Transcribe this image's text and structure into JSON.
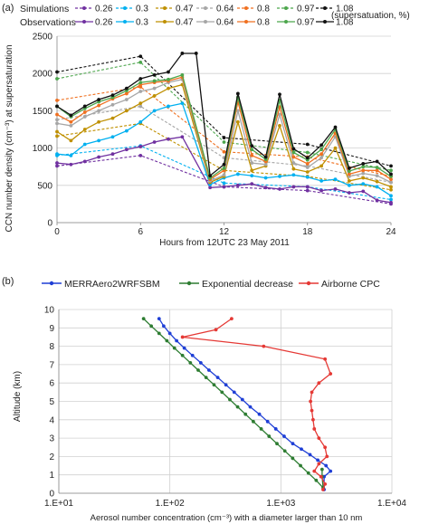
{
  "panel_a": {
    "panel_label": "(a)",
    "legend": {
      "simulations_label": "Simulations",
      "observations_label": "Observations",
      "supersaturation_note": "(supersatuation, %)"
    },
    "ylabel": "CCN number density (cm⁻³) at supersaturation",
    "xlabel": "Hours from 12UTC 23 May 2011",
    "x_ticks": [
      "0",
      "6",
      "12",
      "18",
      "24"
    ],
    "y_ticks": [
      "0",
      "500",
      "1000",
      "1500",
      "2000",
      "2500"
    ]
  },
  "panel_b": {
    "panel_label": "(b)",
    "ylabel": "Altitude (km)",
    "xlabel": "Aerosol number concentration (cm⁻³) with a diameter larger than 10 nm",
    "x_ticks": [
      "1.E+01",
      "1.E+02",
      "1.E+03",
      "1.E+04"
    ],
    "y_ticks": [
      "0",
      "1",
      "2",
      "3",
      "4",
      "5",
      "6",
      "7",
      "8",
      "9",
      "10"
    ]
  },
  "chart_data": [
    {
      "type": "line",
      "title": "",
      "xlabel": "Hours from 12UTC 23 May 2011",
      "ylabel": "CCN number density (cm⁻³) at supersaturation",
      "xlim": [
        0,
        24
      ],
      "ylim": [
        0,
        2500
      ],
      "grid": "horizontal",
      "legend_position": "top",
      "x": [
        0,
        1,
        2,
        3,
        4,
        5,
        6,
        7,
        8,
        9,
        10,
        11,
        12,
        13,
        14,
        15,
        16,
        17,
        18,
        19,
        20,
        21,
        22,
        23,
        24
      ],
      "simulation_series": [
        {
          "name": "0.26",
          "color": "#7030a0",
          "values": [
            760,
            null,
            null,
            null,
            null,
            null,
            900,
            null,
            null,
            null,
            null,
            null,
            480,
            null,
            null,
            null,
            null,
            null,
            430,
            null,
            null,
            null,
            null,
            null,
            250
          ]
        },
        {
          "name": "0.3",
          "color": "#00b0f0",
          "values": [
            900,
            null,
            null,
            null,
            null,
            null,
            1030,
            null,
            null,
            null,
            null,
            null,
            530,
            null,
            null,
            null,
            null,
            null,
            480,
            null,
            null,
            null,
            null,
            null,
            310
          ]
        },
        {
          "name": "0.47",
          "color": "#bf9000",
          "values": [
            1160,
            null,
            null,
            null,
            null,
            null,
            1330,
            null,
            null,
            null,
            null,
            null,
            700,
            null,
            null,
            null,
            null,
            null,
            620,
            null,
            null,
            null,
            null,
            null,
            440
          ]
        },
        {
          "name": "0.64",
          "color": "#a6a6a6",
          "values": [
            1380,
            null,
            null,
            null,
            null,
            null,
            1560,
            null,
            null,
            null,
            null,
            null,
            870,
            null,
            null,
            null,
            null,
            null,
            760,
            null,
            null,
            null,
            null,
            null,
            540
          ]
        },
        {
          "name": "0.8",
          "color": "#f07020",
          "values": [
            1640,
            null,
            null,
            null,
            null,
            null,
            1820,
            null,
            null,
            null,
            null,
            null,
            950,
            null,
            null,
            null,
            null,
            null,
            880,
            null,
            null,
            null,
            null,
            null,
            620
          ]
        },
        {
          "name": "0.97",
          "color": "#4ca64c",
          "values": [
            1930,
            null,
            null,
            null,
            null,
            null,
            2150,
            null,
            null,
            null,
            null,
            null,
            1080,
            null,
            null,
            null,
            null,
            null,
            940,
            null,
            null,
            null,
            null,
            null,
            700
          ]
        },
        {
          "name": "1.08",
          "color": "#111111",
          "values": [
            2020,
            null,
            null,
            null,
            null,
            null,
            2230,
            null,
            null,
            null,
            null,
            null,
            1140,
            null,
            null,
            null,
            null,
            null,
            1050,
            null,
            null,
            null,
            null,
            null,
            760
          ]
        }
      ],
      "observation_series": [
        {
          "name": "0.26",
          "color": "#7030a0",
          "values": [
            800,
            780,
            820,
            880,
            920,
            980,
            1020,
            1080,
            1120,
            1150,
            null,
            470,
            480,
            500,
            520,
            470,
            450,
            480,
            480,
            430,
            450,
            400,
            420,
            300,
            270
          ]
        },
        {
          "name": "0.3",
          "color": "#00b0f0",
          "values": [
            920,
            900,
            1050,
            1100,
            1150,
            1230,
            1350,
            1500,
            1560,
            1600,
            null,
            510,
            600,
            650,
            630,
            600,
            620,
            640,
            610,
            560,
            580,
            500,
            520,
            480,
            360
          ]
        },
        {
          "name": "0.47",
          "color": "#bf9000",
          "values": [
            1220,
            1100,
            1250,
            1350,
            1400,
            1500,
            1600,
            1700,
            1800,
            1850,
            null,
            540,
            620,
            1350,
            700,
            760,
            1300,
            720,
            680,
            760,
            1000,
            560,
            600,
            550,
            480
          ]
        },
        {
          "name": "0.64",
          "color": "#a6a6a6",
          "values": [
            1330,
            1300,
            1420,
            1500,
            1580,
            1650,
            1760,
            1800,
            1880,
            1920,
            null,
            560,
            640,
            1500,
            800,
            780,
            1450,
            800,
            740,
            870,
            1150,
            620,
            660,
            630,
            540
          ]
        },
        {
          "name": "0.8",
          "color": "#f07020",
          "values": [
            1450,
            1350,
            1480,
            1570,
            1660,
            1730,
            1850,
            1880,
            1900,
            1950,
            null,
            580,
            700,
            1620,
            900,
            820,
            1550,
            880,
            790,
            920,
            1200,
            650,
            700,
            700,
            580
          ]
        },
        {
          "name": "0.97",
          "color": "#4ca64c",
          "values": [
            1560,
            1420,
            1530,
            1620,
            1680,
            1770,
            1880,
            1900,
            1920,
            1980,
            null,
            600,
            730,
            1680,
            980,
            850,
            1640,
            940,
            840,
            980,
            1250,
            690,
            750,
            740,
            620
          ]
        },
        {
          "name": "1.08",
          "color": "#111111",
          "values": [
            1560,
            1440,
            1560,
            1650,
            1710,
            1800,
            1930,
            1980,
            2020,
            2270,
            2270,
            630,
            780,
            1730,
            1030,
            880,
            1720,
            990,
            870,
            1040,
            1280,
            730,
            790,
            820,
            650
          ]
        }
      ]
    },
    {
      "type": "line",
      "title": "",
      "xlabel": "Aerosol number concentration (cm⁻³) with a diameter larger than 10 nm",
      "ylabel": "Altitude (km)",
      "xscale": "log",
      "xlim": [
        10,
        10000
      ],
      "ylim": [
        0,
        10
      ],
      "grid": "both",
      "legend_position": "top",
      "series": [
        {
          "name": "MERRAero2WRFSBM",
          "color": "#1f3fd6",
          "x": [
            80,
            88,
            100,
            115,
            135,
            160,
            190,
            225,
            270,
            320,
            380,
            450,
            530,
            640,
            760,
            900,
            1070,
            1280,
            1530,
            1830,
            2150,
            2550,
            2800,
            2450,
            2450
          ],
          "y": [
            9.5,
            9.1,
            8.7,
            8.3,
            7.9,
            7.5,
            7.1,
            6.7,
            6.3,
            5.9,
            5.5,
            5.1,
            4.7,
            4.3,
            3.9,
            3.5,
            3.1,
            2.7,
            2.4,
            2.1,
            1.8,
            1.5,
            1.2,
            0.9,
            0.2
          ]
        },
        {
          "name": "Exponential decrease",
          "color": "#2e7d32",
          "x": [
            58,
            68,
            80,
            94,
            110,
            130,
            153,
            180,
            212,
            250,
            295,
            347,
            408,
            480,
            565,
            665,
            783,
            922,
            1085,
            1277,
            1503,
            1769,
            2080,
            2400,
            2350,
            2350
          ],
          "y": [
            9.5,
            9.1,
            8.7,
            8.3,
            7.9,
            7.5,
            7.1,
            6.7,
            6.3,
            5.9,
            5.5,
            5.1,
            4.7,
            4.3,
            3.9,
            3.5,
            3.1,
            2.7,
            2.3,
            1.9,
            1.5,
            1.1,
            0.7,
            0.3,
            0.9,
            1.3
          ]
        },
        {
          "name": "Airborne CPC",
          "color": "#e53935",
          "x": [
            360,
            260,
            130,
            700,
            2500,
            2800,
            2200,
            1900,
            1850,
            1900,
            1950,
            2000,
            2200,
            2500,
            2600,
            2200,
            2000,
            2300,
            2500,
            2400
          ],
          "y": [
            9.5,
            8.9,
            8.5,
            8.0,
            7.3,
            6.5,
            6.0,
            5.5,
            5.0,
            4.5,
            4.0,
            3.5,
            3.0,
            2.5,
            2.0,
            1.6,
            1.2,
            0.9,
            0.5,
            0.2
          ]
        }
      ]
    }
  ]
}
